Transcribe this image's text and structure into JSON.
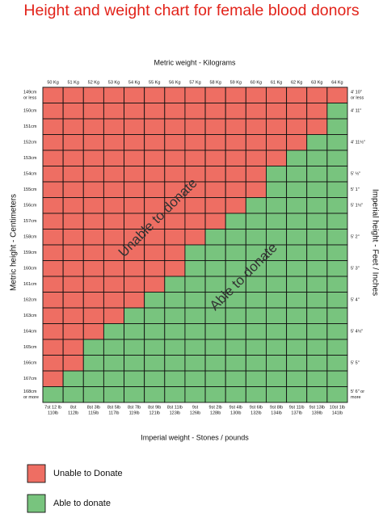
{
  "title": "Height and weight chart for female blood donors",
  "top_axis_label": "Metric weight - Kilograms",
  "left_axis_label": "Metric height - Centimeters",
  "right_axis_label": "Imperial height - Feet / Inches",
  "bottom_axis_label": "Imperial weight - Stones / pounds",
  "overlay_unable": "Unable to donate",
  "overlay_able": "Able to donate",
  "kg_labels": [
    "50 Kg",
    "51 Kg",
    "52 Kg",
    "53 Kg",
    "54 Kg",
    "55 Kg",
    "56 Kg",
    "57 Kg",
    "58 Kg",
    "59 Kg",
    "60 Kg",
    "61 Kg",
    "62 Kg",
    "63 Kg",
    "64 Kg"
  ],
  "imperial_weight_labels": [
    [
      "7st 12 lb",
      "110lb"
    ],
    [
      "8st",
      "112lb"
    ],
    [
      "8st 3lb",
      "115lb"
    ],
    [
      "8st 5lb",
      "117lb"
    ],
    [
      "8st 7lb",
      "119lb"
    ],
    [
      "8st 9lb",
      "121lb"
    ],
    [
      "8st 11lb",
      "123lb"
    ],
    [
      "9st",
      "126lb"
    ],
    [
      "9st 2lb",
      "128lb"
    ],
    [
      "9st 4lb",
      "130lb"
    ],
    [
      "9st 6lb",
      "132lb"
    ],
    [
      "9st 8lb",
      "134lb"
    ],
    [
      "9st 11lb",
      "137lb"
    ],
    [
      "9st 13lb",
      "139lb"
    ],
    [
      "10st 1lb",
      "141lb"
    ]
  ],
  "cm_labels": [
    [
      "149cm",
      "or less"
    ],
    [
      "150cm"
    ],
    [
      "151cm"
    ],
    [
      "152cm"
    ],
    [
      "153cm"
    ],
    [
      "154cm"
    ],
    [
      "155cm"
    ],
    [
      "156cm"
    ],
    [
      "157cm"
    ],
    [
      "158cm"
    ],
    [
      "159cm"
    ],
    [
      "160cm"
    ],
    [
      "161cm"
    ],
    [
      "162cm"
    ],
    [
      "163cm"
    ],
    [
      "164cm"
    ],
    [
      "165cm"
    ],
    [
      "166cm"
    ],
    [
      "167cm"
    ],
    [
      "168cm",
      "or more"
    ]
  ],
  "feet_labels": [
    [
      "4' 10\"",
      "or less"
    ],
    [
      "4' 11\""
    ],
    null,
    [
      "4' 11½\""
    ],
    null,
    [
      "5' ½\""
    ],
    [
      "5' 1\""
    ],
    [
      "5' 1½\""
    ],
    null,
    [
      "5' 2\""
    ],
    null,
    [
      "5' 3\""
    ],
    null,
    [
      "5' 4\""
    ],
    null,
    [
      "5' 4½\""
    ],
    null,
    [
      "5' 5\""
    ],
    null,
    [
      "5' 6\" or",
      "more"
    ]
  ],
  "legend": [
    {
      "label": "Unable to Donate",
      "color": "#ee6e63"
    },
    {
      "label": "Able to donate",
      "color": "#78c47e"
    }
  ],
  "grid": [
    [
      0,
      0,
      0,
      0,
      0,
      0,
      0,
      0,
      0,
      0,
      0,
      0,
      0,
      0,
      0
    ],
    [
      0,
      0,
      0,
      0,
      0,
      0,
      0,
      0,
      0,
      0,
      0,
      0,
      0,
      0,
      1
    ],
    [
      0,
      0,
      0,
      0,
      0,
      0,
      0,
      0,
      0,
      0,
      0,
      0,
      0,
      0,
      1
    ],
    [
      0,
      0,
      0,
      0,
      0,
      0,
      0,
      0,
      0,
      0,
      0,
      0,
      0,
      1,
      1
    ],
    [
      0,
      0,
      0,
      0,
      0,
      0,
      0,
      0,
      0,
      0,
      0,
      0,
      1,
      1,
      1
    ],
    [
      0,
      0,
      0,
      0,
      0,
      0,
      0,
      0,
      0,
      0,
      0,
      1,
      1,
      1,
      1
    ],
    [
      0,
      0,
      0,
      0,
      0,
      0,
      0,
      0,
      0,
      0,
      0,
      1,
      1,
      1,
      1
    ],
    [
      0,
      0,
      0,
      0,
      0,
      0,
      0,
      0,
      0,
      0,
      1,
      1,
      1,
      1,
      1
    ],
    [
      0,
      0,
      0,
      0,
      0,
      0,
      0,
      0,
      0,
      1,
      1,
      1,
      1,
      1,
      1
    ],
    [
      0,
      0,
      0,
      0,
      0,
      0,
      0,
      0,
      1,
      1,
      1,
      1,
      1,
      1,
      1
    ],
    [
      0,
      0,
      0,
      0,
      0,
      0,
      0,
      1,
      1,
      1,
      1,
      1,
      1,
      1,
      1
    ],
    [
      0,
      0,
      0,
      0,
      0,
      0,
      0,
      1,
      1,
      1,
      1,
      1,
      1,
      1,
      1
    ],
    [
      0,
      0,
      0,
      0,
      0,
      0,
      1,
      1,
      1,
      1,
      1,
      1,
      1,
      1,
      1
    ],
    [
      0,
      0,
      0,
      0,
      0,
      1,
      1,
      1,
      1,
      1,
      1,
      1,
      1,
      1,
      1
    ],
    [
      0,
      0,
      0,
      0,
      1,
      1,
      1,
      1,
      1,
      1,
      1,
      1,
      1,
      1,
      1
    ],
    [
      0,
      0,
      0,
      1,
      1,
      1,
      1,
      1,
      1,
      1,
      1,
      1,
      1,
      1,
      1
    ],
    [
      0,
      0,
      1,
      1,
      1,
      1,
      1,
      1,
      1,
      1,
      1,
      1,
      1,
      1,
      1
    ],
    [
      0,
      0,
      1,
      1,
      1,
      1,
      1,
      1,
      1,
      1,
      1,
      1,
      1,
      1,
      1
    ],
    [
      0,
      1,
      1,
      1,
      1,
      1,
      1,
      1,
      1,
      1,
      1,
      1,
      1,
      1,
      1
    ],
    [
      1,
      1,
      1,
      1,
      1,
      1,
      1,
      1,
      1,
      1,
      1,
      1,
      1,
      1,
      1
    ]
  ]
}
